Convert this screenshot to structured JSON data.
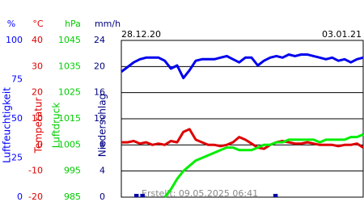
{
  "chart_data": {
    "type": "line",
    "date_start": "28.12.20",
    "date_end": "03.01.21",
    "footer": "Erstellt: 09.05.2025 06:41",
    "grid": true,
    "axes": [
      {
        "unit": "%",
        "label": "Luftfeuchtigkeit",
        "color": "#0000ff",
        "ylim": [
          0,
          100
        ],
        "yticks": [
          0,
          25,
          50,
          75,
          100
        ]
      },
      {
        "unit": "°C",
        "label": "Temperatur",
        "color": "#dd0000",
        "ylim": [
          -20,
          40
        ],
        "yticks": [
          -20,
          -10,
          0,
          10,
          20,
          30,
          40
        ]
      },
      {
        "unit": "hPa",
        "label": "Luftdruck",
        "color": "#00cc00",
        "ylim": [
          985,
          1045
        ],
        "yticks": [
          985,
          995,
          1005,
          1015,
          1025,
          1035,
          1045
        ]
      },
      {
        "unit": "mm/h",
        "label": "Niederschlag",
        "color": "#000080",
        "ylim": [
          0,
          24
        ],
        "yticks": [
          0,
          4,
          8,
          12,
          16,
          20,
          24
        ]
      }
    ],
    "series": [
      {
        "name": "Luftfeuchtigkeit",
        "axis": 0,
        "kind": "line",
        "color": "#0000ee",
        "values": [
          80,
          83,
          86,
          88,
          89,
          89,
          89,
          87,
          82,
          84,
          76,
          81,
          87,
          88,
          88,
          88,
          89,
          90,
          88,
          86,
          89,
          89,
          84,
          87,
          89,
          90,
          89,
          91,
          90,
          91,
          91,
          90,
          89,
          88,
          89,
          87,
          88,
          86,
          88,
          89
        ]
      },
      {
        "name": "Temperatur",
        "axis": 1,
        "kind": "line",
        "color": "#dd0000",
        "values": [
          1,
          1,
          1.5,
          0.5,
          1,
          0,
          0.5,
          0,
          1.5,
          1,
          5,
          6,
          2,
          1,
          0,
          0,
          -0.5,
          0,
          1,
          3,
          2,
          0.5,
          -1,
          -1.5,
          0,
          1,
          1.5,
          1,
          0.5,
          0.5,
          1,
          0.5,
          0,
          0,
          0,
          -0.5,
          0,
          0,
          0.5,
          -1
        ]
      },
      {
        "name": "Luftdruck",
        "axis": 2,
        "kind": "line",
        "color": "#00ee00",
        "values": [
          null,
          null,
          null,
          null,
          null,
          null,
          null,
          985,
          988,
          992,
          995,
          997,
          999,
          1000,
          1001,
          1002,
          1003,
          1004,
          1004,
          1003,
          1003,
          1003,
          1004,
          1005,
          1005,
          1006,
          1006,
          1007,
          1007,
          1007,
          1007,
          1007,
          1006,
          1007,
          1007,
          1007,
          1007,
          1008,
          1008,
          1009
        ]
      },
      {
        "name": "Niederschlag",
        "axis": 3,
        "kind": "bar",
        "color": "#0000aa",
        "values": [
          0,
          0,
          0.5,
          0.5,
          0,
          0,
          0,
          0,
          0,
          0,
          0,
          0,
          0,
          0,
          0,
          0,
          0,
          0,
          0,
          0,
          0,
          0,
          0,
          0,
          0,
          0.5,
          0,
          0,
          0,
          0,
          0,
          0,
          0,
          0,
          0,
          0,
          0,
          0,
          0,
          0
        ]
      }
    ]
  }
}
